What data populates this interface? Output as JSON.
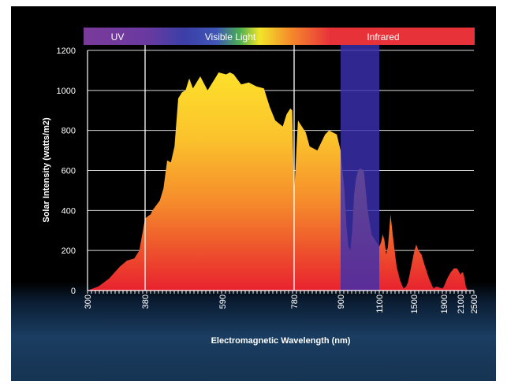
{
  "chart_data": {
    "type": "area",
    "xlabel": "Electromagnetic Wavelength (nm)",
    "ylabel": "Solar Intensity (watts/m2)",
    "ylim": [
      0,
      1200
    ],
    "yticks": [
      "0",
      "200",
      "400",
      "600",
      "800",
      "1000",
      "1200"
    ],
    "xtick_labels": [
      "300",
      "380",
      "590",
      "780",
      "900",
      "1100",
      "1500",
      "1900",
      "2100",
      "2500"
    ],
    "grid": true,
    "spectrum_bands": [
      {
        "label": "UV",
        "color": "#7a3a9a"
      },
      {
        "label": "Visible Light",
        "color": "#3b3fa8"
      },
      {
        "label": "Infrared",
        "color": "#e8323a"
      }
    ],
    "boundary_lines_nm": [
      380,
      780
    ],
    "highlight_range_nm": [
      900,
      1100
    ],
    "highlight_color": "#3b2fb0",
    "fill_gradient": {
      "top": "#fde02a",
      "middle": "#f79a2a",
      "bottom": "#e8222e"
    },
    "series": [
      {
        "wavelength_nm": [
          300,
          315,
          330,
          345,
          355,
          365,
          372,
          380,
          390,
          395,
          400,
          420,
          430,
          440,
          450,
          460,
          470,
          480,
          490,
          500,
          510,
          530,
          550,
          570,
          580,
          590,
          600,
          610,
          620,
          640,
          660,
          680,
          700,
          715,
          730,
          750,
          760,
          770,
          775,
          780,
          790,
          800,
          810,
          820,
          840,
          860,
          870,
          890,
          900,
          910,
          920,
          930,
          940,
          950,
          960,
          970,
          980,
          990,
          1000,
          1020,
          1040,
          1060,
          1080,
          1100,
          1120,
          1140,
          1160,
          1180,
          1200,
          1230,
          1260,
          1300,
          1340,
          1380,
          1410,
          1430,
          1450,
          1500,
          1530,
          1560,
          1600,
          1640,
          1700,
          1760,
          1800,
          1840,
          1880,
          1900,
          1940,
          1980,
          2020,
          2060,
          2080,
          2100,
          2140,
          2180,
          2220,
          2260,
          2300,
          2340,
          2380,
          2420,
          2460,
          2500
        ],
        "intensity": [
          0,
          20,
          60,
          120,
          150,
          160,
          200,
          360,
          375,
          380,
          400,
          450,
          510,
          650,
          640,
          720,
          960,
          990,
          1000,
          1060,
          1010,
          1070,
          1000,
          1060,
          1090,
          1085,
          1080,
          1090,
          1080,
          1030,
          1040,
          1020,
          1010,
          920,
          850,
          820,
          880,
          910,
          900,
          480,
          850,
          820,
          790,
          720,
          700,
          780,
          800,
          780,
          700,
          600,
          500,
          320,
          220,
          200,
          300,
          480,
          560,
          600,
          610,
          600,
          400,
          280,
          250,
          220,
          240,
          280,
          250,
          180,
          220,
          380,
          260,
          120,
          50,
          10,
          20,
          40,
          80,
          190,
          230,
          200,
          180,
          130,
          60,
          10,
          20,
          15,
          10,
          20,
          60,
          90,
          110,
          110,
          95,
          80,
          90,
          90,
          60,
          20,
          5,
          0,
          0,
          0,
          0
        ]
      }
    ]
  }
}
